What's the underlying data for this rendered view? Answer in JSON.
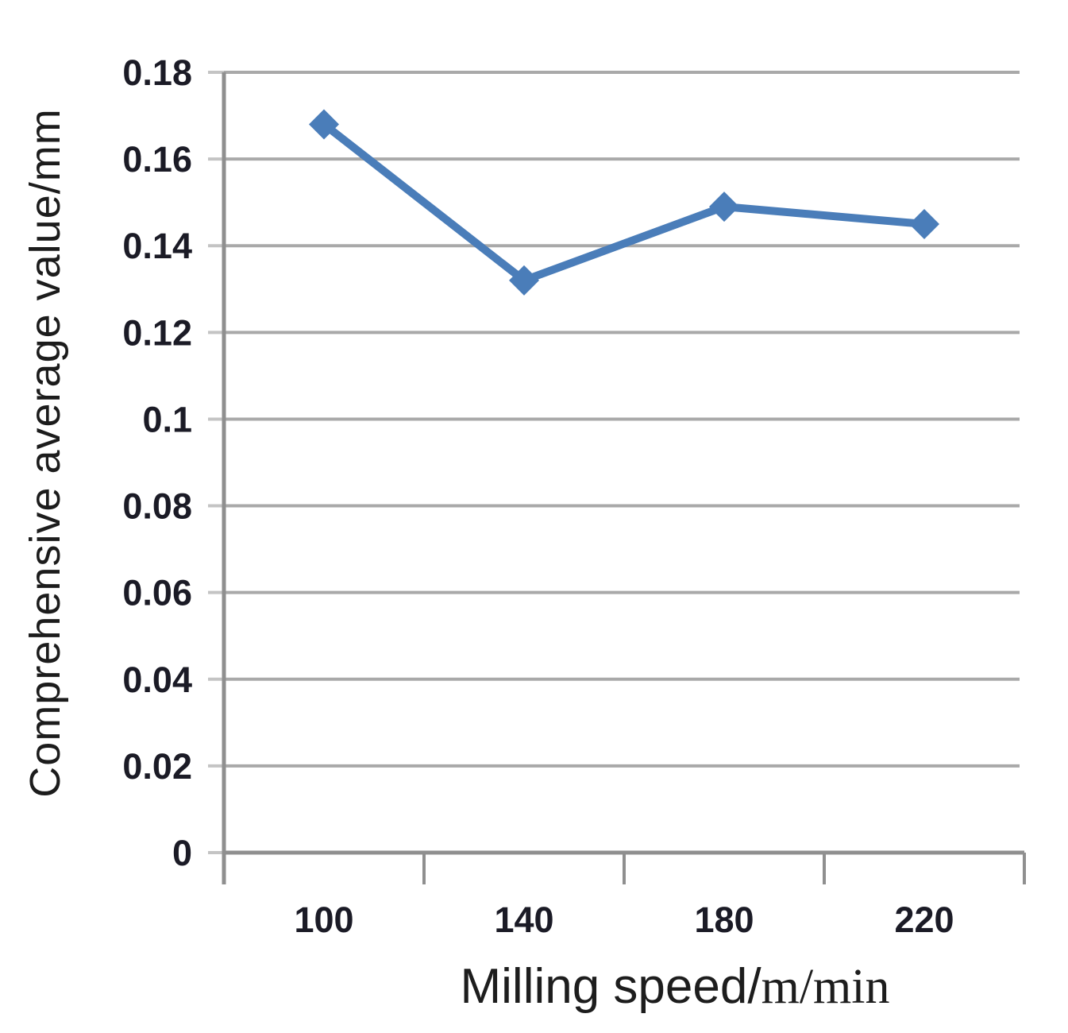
{
  "chart_data": {
    "type": "line",
    "title": "",
    "xlabel": "Milling speed/m/min",
    "xlabel_parts": {
      "sans": "Milling speed/",
      "serif": "m/min"
    },
    "ylabel": "Comprehensive average value/mm",
    "categories": [
      "100",
      "140",
      "180",
      "220"
    ],
    "series": [
      {
        "name": "Comprehensive average value",
        "values": [
          0.168,
          0.132,
          0.149,
          0.145
        ]
      }
    ],
    "ylim": [
      0,
      0.18
    ],
    "ytick_step": 0.02,
    "ytick_labels": [
      "0",
      "0.02",
      "0.04",
      "0.06",
      "0.08",
      "0.1",
      "0.12",
      "0.14",
      "0.16",
      "0.18"
    ],
    "grid": true,
    "legend_position": "none",
    "marker": "diamond",
    "colors": {
      "series": "#4a7db9",
      "gridline": "#a9a9a9",
      "axis": "#8f8f8f",
      "tick_label": "#1b1b26",
      "axis_title": "#1c1c1c"
    }
  }
}
